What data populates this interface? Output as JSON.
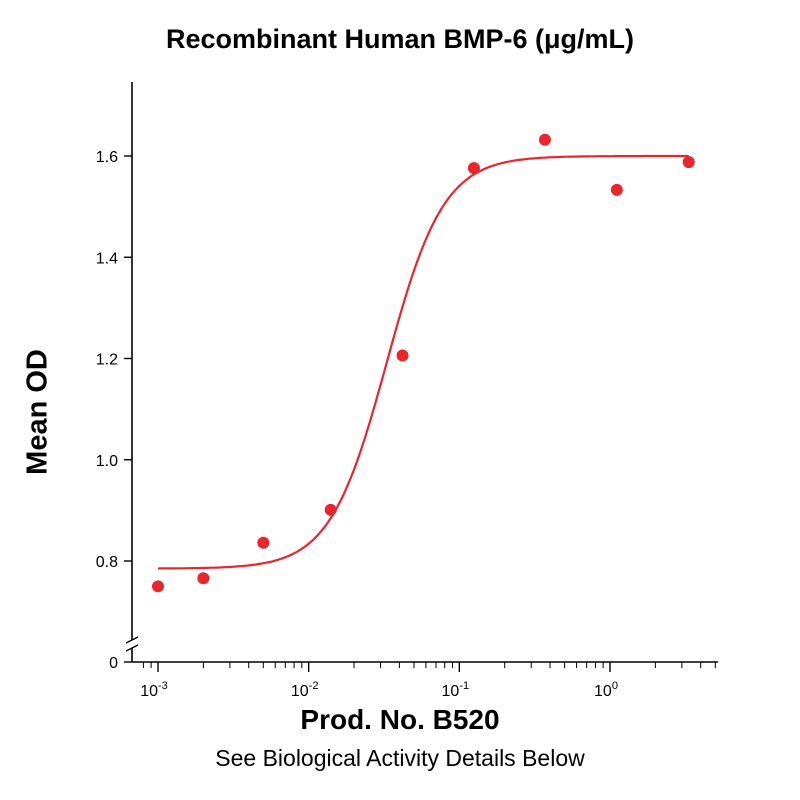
{
  "chart_data": {
    "type": "scatter",
    "title": "Recombinant Human BMP-6 (μg/mL)",
    "xlabel": "",
    "ylabel": "Mean OD",
    "x_scale": "log",
    "xlim": [
      0.00075,
      5.5
    ],
    "ylim": [
      0,
      1.75
    ],
    "x_ticks": [
      {
        "value": 0.001,
        "base": "10",
        "exp": "-3"
      },
      {
        "value": 0.01,
        "base": "10",
        "exp": "-2"
      },
      {
        "value": 0.1,
        "base": "10",
        "exp": "-1"
      },
      {
        "value": 1,
        "base": "10",
        "exp": "0"
      }
    ],
    "y_ticks": [
      "0",
      "0.8",
      "1.0",
      "1.2",
      "1.4",
      "1.6"
    ],
    "y_break": true,
    "series": [
      {
        "points": [
          {
            "x": 0.001,
            "y": 0.75
          },
          {
            "x": 0.002,
            "y": 0.766
          },
          {
            "x": 0.005,
            "y": 0.836
          },
          {
            "x": 0.014,
            "y": 0.901
          },
          {
            "x": 0.042,
            "y": 1.206
          },
          {
            "x": 0.125,
            "y": 1.576
          },
          {
            "x": 0.37,
            "y": 1.632
          },
          {
            "x": 1.11,
            "y": 1.533
          },
          {
            "x": 3.33,
            "y": 1.588
          }
        ]
      }
    ],
    "fit_curve": {
      "bottom": 0.785,
      "top": 1.6,
      "ec50": 0.033,
      "hill": 2.3
    },
    "color": "#e8262c",
    "grid": false,
    "legend": "none"
  },
  "footnote": {
    "main": "Prod. No. B520",
    "sub": "See Biological Activity Details Below"
  }
}
